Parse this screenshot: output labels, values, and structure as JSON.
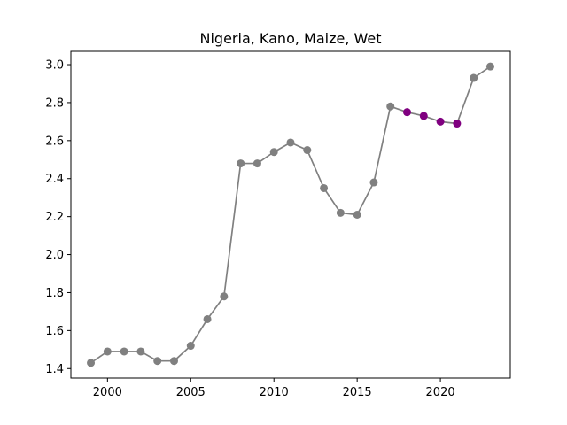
{
  "chart_data": {
    "type": "line",
    "title": "Nigeria, Kano, Maize, Wet",
    "xlabel": "",
    "ylabel": "",
    "xlim": [
      1997.8,
      2024.2
    ],
    "ylim": [
      1.35,
      3.07
    ],
    "xticks": [
      2000,
      2005,
      2010,
      2015,
      2020
    ],
    "yticks": [
      1.4,
      1.6,
      1.8,
      2.0,
      2.2,
      2.4,
      2.6,
      2.8,
      3.0
    ],
    "xtick_labels": [
      "2000",
      "2005",
      "2010",
      "2015",
      "2020"
    ],
    "ytick_labels": [
      "1.4",
      "1.6",
      "1.8",
      "2.0",
      "2.2",
      "2.4",
      "2.6",
      "2.8",
      "3.0"
    ],
    "grid": false,
    "series": [
      {
        "color": "#808080",
        "line_color": "#808080",
        "highlight_color": "#800080",
        "x": [
          1999,
          2000,
          2001,
          2002,
          2003,
          2004,
          2005,
          2006,
          2007,
          2008,
          2009,
          2010,
          2011,
          2012,
          2013,
          2014,
          2015,
          2016,
          2017,
          2018,
          2019,
          2020,
          2021,
          2022,
          2023
        ],
        "y": [
          1.43,
          1.49,
          1.49,
          1.49,
          1.44,
          1.44,
          1.52,
          1.66,
          1.78,
          2.48,
          2.48,
          2.54,
          2.59,
          2.55,
          2.35,
          2.22,
          2.21,
          2.38,
          2.78,
          2.75,
          2.73,
          2.7,
          2.69,
          2.93,
          2.99
        ],
        "highlighted_x": [
          2018,
          2019,
          2020,
          2021
        ]
      }
    ]
  }
}
